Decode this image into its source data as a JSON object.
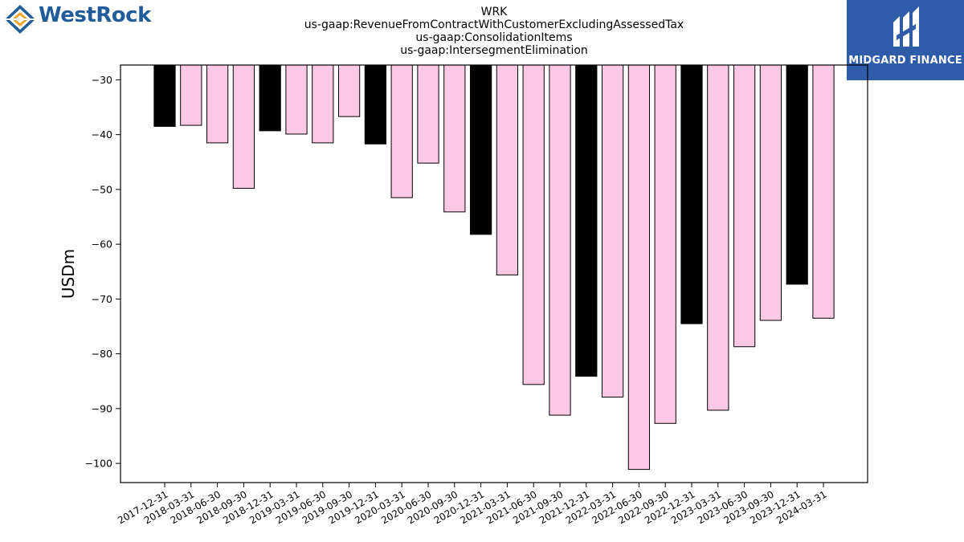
{
  "header": {
    "title_lines": [
      "WRK",
      "us-gaap:RevenueFromContractWithCustomerExcludingAssessedTax",
      "us-gaap:ConsolidationItems",
      "us-gaap:IntersegmentElimination"
    ]
  },
  "logos": {
    "left_brand": "WestRock",
    "right_brand": "MIDGARD FINANCE"
  },
  "colors": {
    "annual_bar": "#000000",
    "quarterly_bar": "#fcc8e4",
    "right_logo_bg": "#2f5ca8",
    "left_logo_text": "#1f5c99"
  },
  "chart_data": {
    "type": "bar",
    "ylabel": "USDm",
    "ylim": [
      -103.5,
      -27.3
    ],
    "yticks": [
      -30,
      -40,
      -50,
      -60,
      -70,
      -80,
      -90,
      -100
    ],
    "grid": false,
    "categories": [
      "2017-12-31",
      "2018-03-31",
      "2018-06-30",
      "2018-09-30",
      "2018-12-31",
      "2019-03-31",
      "2019-06-30",
      "2019-09-30",
      "2019-12-31",
      "2020-03-31",
      "2020-06-30",
      "2020-09-30",
      "2020-12-31",
      "2021-03-31",
      "2021-06-30",
      "2021-09-30",
      "2021-12-31",
      "2022-03-31",
      "2022-06-30",
      "2022-09-30",
      "2022-12-31",
      "2023-03-31",
      "2023-06-30",
      "2023-09-30",
      "2023-12-31",
      "2024-03-31"
    ],
    "values": [
      -38.5,
      -38.3,
      -41.5,
      -49.8,
      -39.3,
      -39.9,
      -41.5,
      -36.7,
      -41.7,
      -51.5,
      -45.2,
      -54.1,
      -58.2,
      -65.6,
      -85.6,
      -91.2,
      -84.1,
      -87.9,
      -101.1,
      -92.7,
      -74.5,
      -90.3,
      -78.7,
      -73.9,
      -67.3,
      -73.5
    ],
    "bar_kind": [
      "annual",
      "quarterly",
      "quarterly",
      "quarterly",
      "annual",
      "quarterly",
      "quarterly",
      "quarterly",
      "annual",
      "quarterly",
      "quarterly",
      "quarterly",
      "annual",
      "quarterly",
      "quarterly",
      "quarterly",
      "annual",
      "quarterly",
      "quarterly",
      "quarterly",
      "annual",
      "quarterly",
      "quarterly",
      "quarterly",
      "annual",
      "quarterly"
    ]
  }
}
